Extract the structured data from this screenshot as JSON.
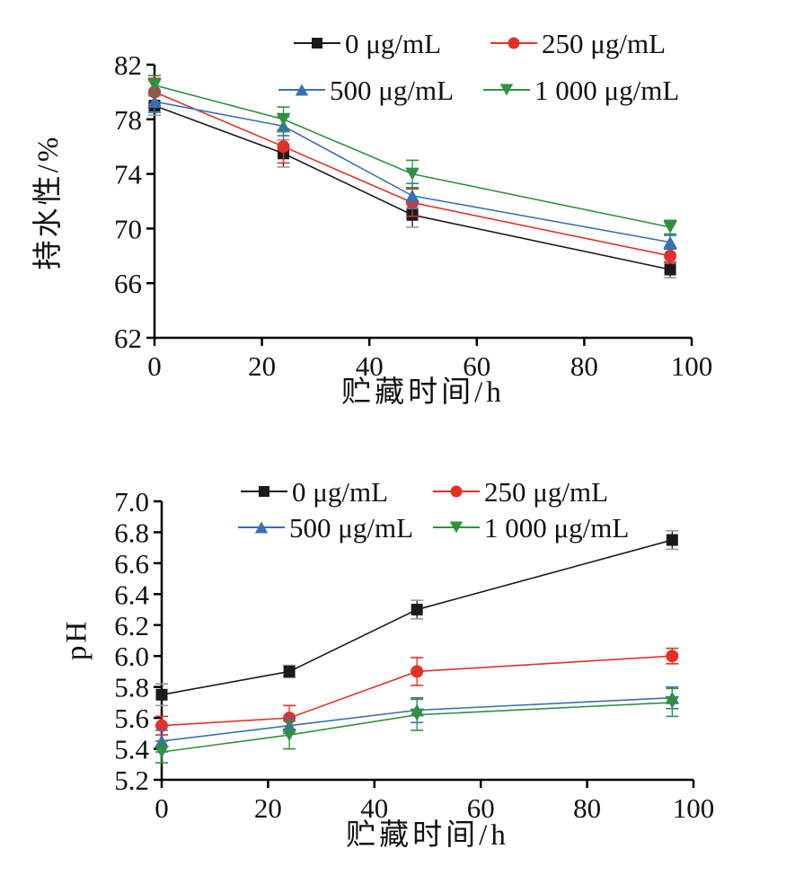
{
  "page": {
    "background": "#ffffff"
  },
  "chart_data": [
    {
      "type": "line",
      "title": "",
      "xlabel": "贮藏时间/h",
      "ylabel": "持水性/%",
      "x": [
        0,
        24,
        48,
        96
      ],
      "xlim": [
        0,
        100
      ],
      "ylim": [
        62,
        82
      ],
      "xticks": [
        "0",
        "20",
        "40",
        "60",
        "80",
        "100"
      ],
      "yticks": [
        "62",
        "66",
        "70",
        "74",
        "78",
        "82"
      ],
      "grid": "off",
      "legend_position": "top-center, 2 columns, 2 rows",
      "error_bars": true,
      "series": [
        {
          "name": "0 μg/mL",
          "color": "#1a1a1a",
          "cap_color": "#9a9a9a",
          "marker": "square",
          "values": [
            79.0,
            75.5,
            71.0,
            67.0
          ],
          "errors": [
            0.7,
            1.0,
            0.9,
            0.6
          ]
        },
        {
          "name": "250 μg/mL",
          "color": "#e23128",
          "cap_color": "#e23128",
          "marker": "circle",
          "values": [
            80.0,
            76.0,
            71.9,
            68.0
          ],
          "errors": [
            1.0,
            1.2,
            1.0,
            0.5
          ]
        },
        {
          "name": "500 μg/mL",
          "color": "#3a70b2",
          "cap_color": "#3a70b2",
          "marker": "triangle-up",
          "values": [
            79.3,
            77.5,
            72.4,
            69.0
          ],
          "errors": [
            0.8,
            0.7,
            0.9,
            0.5
          ]
        },
        {
          "name": "1 000 μg/mL",
          "color": "#2f9140",
          "cap_color": "#2f9140",
          "marker": "triangle-down",
          "values": [
            80.5,
            78.0,
            74.0,
            70.1
          ],
          "errors": [
            0.7,
            0.9,
            1.0,
            0.5
          ]
        }
      ]
    },
    {
      "type": "line",
      "title": "",
      "xlabel": "贮藏时间/h",
      "ylabel": "pH",
      "x": [
        0,
        24,
        48,
        96
      ],
      "xlim": [
        0,
        100
      ],
      "ylim": [
        5.2,
        7.0
      ],
      "xticks": [
        "0",
        "20",
        "40",
        "60",
        "80",
        "100"
      ],
      "yticks": [
        "5.2",
        "5.4",
        "5.6",
        "5.8",
        "6.0",
        "6.2",
        "6.4",
        "6.6",
        "6.8",
        "7.0"
      ],
      "grid": "off",
      "legend_position": "top-center, 2 columns, 2 rows",
      "error_bars": true,
      "series": [
        {
          "name": "0 μg/mL",
          "color": "#1a1a1a",
          "cap_color": "#9a9a9a",
          "marker": "square",
          "values": [
            5.75,
            5.9,
            6.3,
            6.75
          ],
          "errors": [
            0.07,
            0.04,
            0.06,
            0.06
          ]
        },
        {
          "name": "250 μg/mL",
          "color": "#e23128",
          "cap_color": "#e23128",
          "marker": "circle",
          "values": [
            5.55,
            5.6,
            5.9,
            6.0
          ],
          "errors": [
            0.06,
            0.08,
            0.09,
            0.05
          ]
        },
        {
          "name": "500 μg/mL",
          "color": "#3a70b2",
          "cap_color": "#3a70b2",
          "marker": "triangle-up",
          "values": [
            5.45,
            5.55,
            5.65,
            5.73
          ],
          "errors": [
            0.07,
            0.05,
            0.08,
            0.07
          ]
        },
        {
          "name": "1 000 μg/mL",
          "color": "#2f9140",
          "cap_color": "#2f9140",
          "marker": "triangle-down",
          "values": [
            5.38,
            5.49,
            5.62,
            5.7
          ],
          "errors": [
            0.07,
            0.09,
            0.1,
            0.09
          ]
        }
      ]
    }
  ]
}
